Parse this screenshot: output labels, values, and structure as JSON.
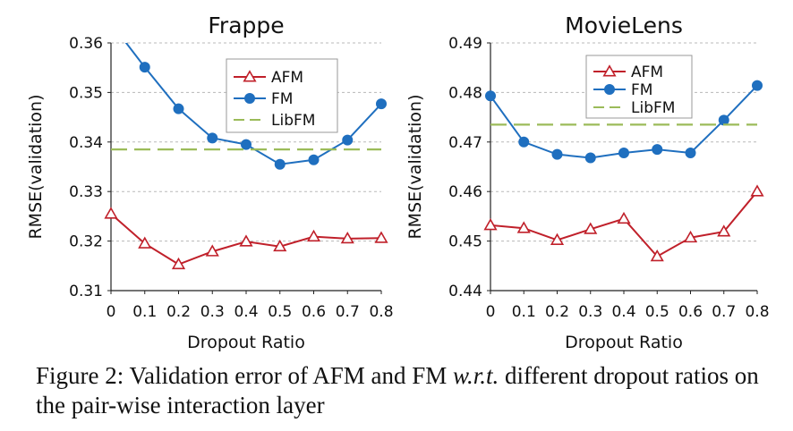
{
  "colors": {
    "afm": "#c0202a",
    "fm": "#1f6fbf",
    "libfm": "#9bbb59",
    "grid": "#b8b8b8",
    "axis": "#222222"
  },
  "chart_data": [
    {
      "type": "line",
      "title": "Frappe",
      "xlabel": "Dropout Ratio",
      "ylabel": "RMSE(validation)",
      "ylim": [
        0.31,
        0.36
      ],
      "yticks": [
        0.31,
        0.32,
        0.33,
        0.34,
        0.35,
        0.36
      ],
      "ytick_labels": [
        "0.31",
        "0.32",
        "0.33",
        "0.34",
        "0.35",
        "0.36"
      ],
      "x": [
        0,
        0.1,
        0.2,
        0.3,
        0.4,
        0.5,
        0.6,
        0.7,
        0.8
      ],
      "xtick_labels": [
        "0",
        "0.1",
        "0.2",
        "0.3",
        "0.4",
        "0.5",
        "0.6",
        "0.7",
        "0.8"
      ],
      "grid": true,
      "legend_position": "top-right",
      "series": [
        {
          "name": "AFM",
          "marker": "triangle",
          "color": "#c0202a",
          "values": [
            0.3255,
            0.3195,
            0.3153,
            0.3179,
            0.3199,
            0.3189,
            0.3209,
            0.3205,
            0.3206
          ]
        },
        {
          "name": "FM",
          "marker": "circle",
          "color": "#1f6fbf",
          "values": [
            0.364,
            0.3551,
            0.3467,
            0.3408,
            0.3395,
            0.3355,
            0.3364,
            0.3404,
            0.3477
          ]
        },
        {
          "name": "LibFM",
          "marker": "none",
          "color": "#9bbb59",
          "dashed": true,
          "values": [
            0.3385,
            0.3385,
            0.3385,
            0.3385,
            0.3385,
            0.3385,
            0.3385,
            0.3385,
            0.3385
          ]
        }
      ]
    },
    {
      "type": "line",
      "title": "MovieLens",
      "xlabel": "Dropout Ratio",
      "ylabel": "RMSE(validation)",
      "ylim": [
        0.44,
        0.49
      ],
      "yticks": [
        0.44,
        0.45,
        0.46,
        0.47,
        0.48,
        0.49
      ],
      "ytick_labels": [
        "0.44",
        "0.45",
        "0.46",
        "0.47",
        "0.48",
        "0.49"
      ],
      "x": [
        0,
        0.1,
        0.2,
        0.3,
        0.4,
        0.5,
        0.6,
        0.7,
        0.8
      ],
      "xtick_labels": [
        "0",
        "0.1",
        "0.2",
        "0.3",
        "0.4",
        "0.5",
        "0.6",
        "0.7",
        "0.8"
      ],
      "grid": true,
      "legend_position": "top-right",
      "series": [
        {
          "name": "AFM",
          "marker": "triangle",
          "color": "#c0202a",
          "values": [
            0.4532,
            0.4526,
            0.4502,
            0.4524,
            0.4545,
            0.4469,
            0.4507,
            0.4519,
            0.46
          ]
        },
        {
          "name": "FM",
          "marker": "circle",
          "color": "#1f6fbf",
          "values": [
            0.4793,
            0.47,
            0.4675,
            0.4668,
            0.4678,
            0.4685,
            0.4678,
            0.4744,
            0.4814
          ]
        },
        {
          "name": "LibFM",
          "marker": "none",
          "color": "#9bbb59",
          "dashed": true,
          "values": [
            0.4735,
            0.4735,
            0.4735,
            0.4735,
            0.4735,
            0.4735,
            0.4735,
            0.4735,
            0.4735
          ]
        }
      ]
    }
  ],
  "caption": {
    "part1": "Figure 2: Validation error of AFM and FM ",
    "wrt": "w.r.t.",
    "part2": " different dropout ratios on the pair-wise interaction layer"
  }
}
